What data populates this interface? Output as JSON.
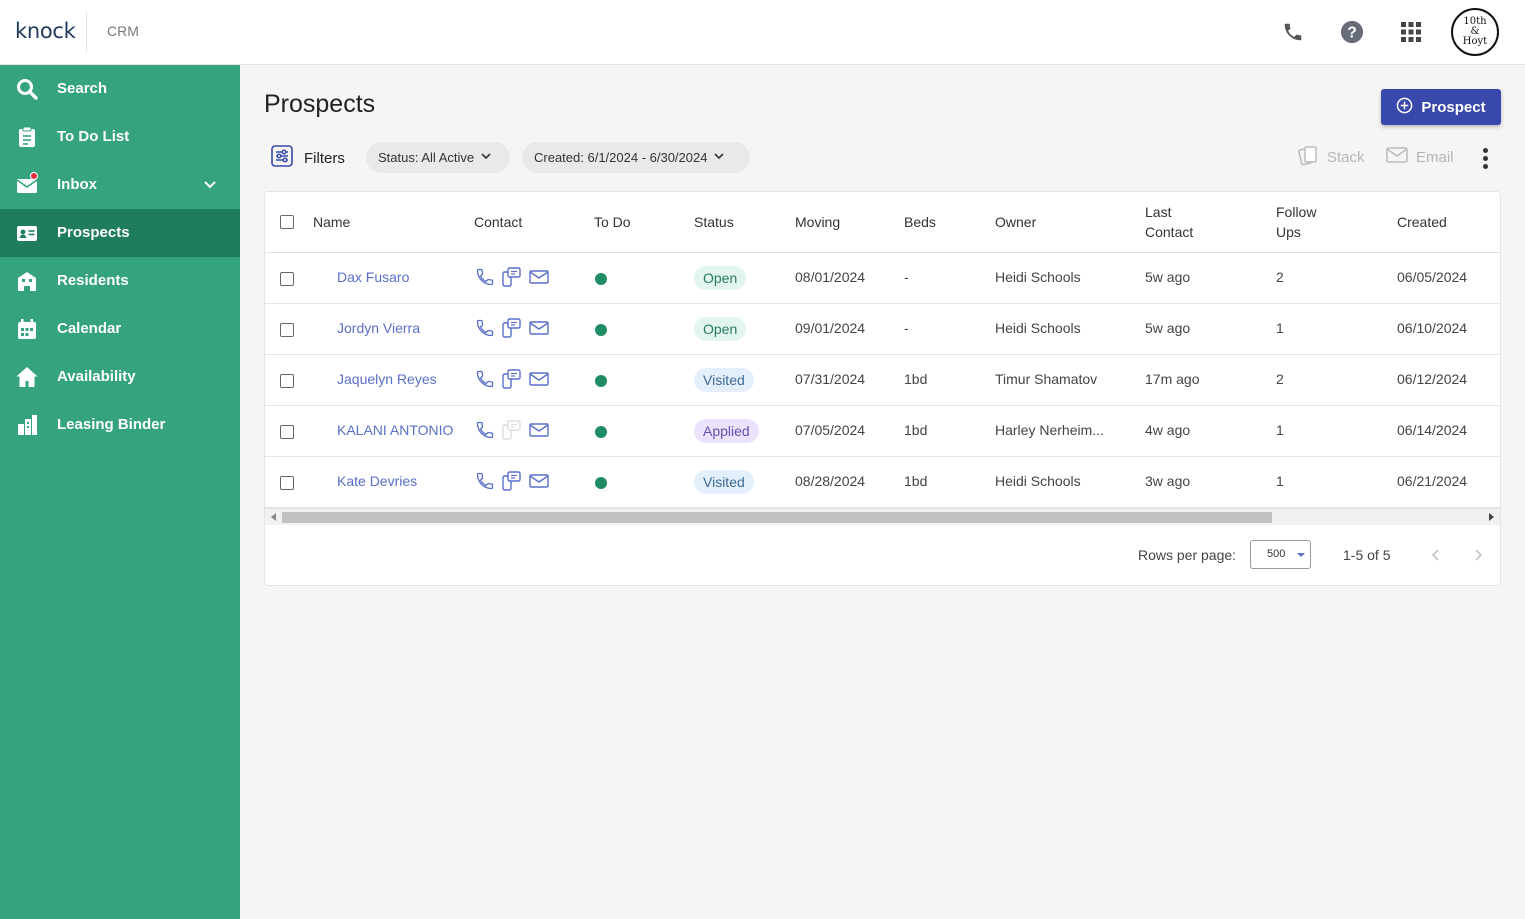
{
  "brand": {
    "logo": "knock",
    "section": "CRM"
  },
  "topbar": {
    "icons": [
      "phone-icon",
      "help-icon",
      "apps-grid-icon"
    ],
    "avatar_text": "10th & Hoyt"
  },
  "sidebar": {
    "items": [
      {
        "label": "Search",
        "icon": "search-icon"
      },
      {
        "label": "To Do List",
        "icon": "clipboard-icon"
      },
      {
        "label": "Inbox",
        "icon": "envelope-icon"
      },
      {
        "label": "Prospects",
        "icon": "id-card-icon"
      },
      {
        "label": "Residents",
        "icon": "building-icon"
      },
      {
        "label": "Calendar",
        "icon": "calendar-icon"
      },
      {
        "label": "Availability",
        "icon": "home-icon"
      },
      {
        "label": "Leasing Binder",
        "icon": "binder-icon"
      }
    ],
    "active": "Prospects"
  },
  "main": {
    "title": "Prospects",
    "add_button": "Prospect",
    "filters_label": "Filters",
    "chips": {
      "status": "Status: All Active",
      "created": "Created: 6/1/2024 - 6/30/2024"
    },
    "actions": {
      "stack": "Stack",
      "email": "Email"
    }
  },
  "table": {
    "headers": {
      "name": "Name",
      "contact": "Contact",
      "todo": "To Do",
      "status": "Status",
      "moving": "Moving",
      "beds": "Beds",
      "owner": "Owner",
      "last_contact_1": "Last",
      "last_contact_2": "Contact",
      "follow_ups_1": "Follow",
      "follow_ups_2": "Ups",
      "created": "Created"
    },
    "rows": [
      {
        "name": "Dax Fusaro",
        "status": "Open",
        "moving": "08/01/2024",
        "beds": "-",
        "owner": "Heidi Schools",
        "last_contact": "5w ago",
        "follow_ups": "2",
        "created": "06/05/2024"
      },
      {
        "name": "Jordyn Vierra",
        "status": "Open",
        "moving": "09/01/2024",
        "beds": "-",
        "owner": "Heidi Schools",
        "last_contact": "5w ago",
        "follow_ups": "1",
        "created": "06/10/2024"
      },
      {
        "name": "Jaquelyn Reyes",
        "status": "Visited",
        "moving": "07/31/2024",
        "beds": "1bd",
        "owner": "Timur Shamatov",
        "last_contact": "17m ago",
        "follow_ups": "2",
        "created": "06/12/2024"
      },
      {
        "name": "KALANI ANTONIO",
        "status": "Applied",
        "moving": "07/05/2024",
        "beds": "1bd",
        "owner": "Harley Nerheim...",
        "last_contact": "4w ago",
        "follow_ups": "1",
        "created": "06/14/2024"
      },
      {
        "name": "Kate Devries",
        "status": "Visited",
        "moving": "08/28/2024",
        "beds": "1bd",
        "owner": "Heidi Schools",
        "last_contact": "3w ago",
        "follow_ups": "1",
        "created": "06/21/2024"
      }
    ]
  },
  "pagination": {
    "rows_per_page_label": "Rows per page:",
    "rows_per_page": "500",
    "range": "1-5 of 5"
  },
  "colors": {
    "sidebar": "#35a37e",
    "sidebar_active": "#1f7d5d",
    "primary": "#3949ab",
    "link": "#5a6fc8"
  }
}
